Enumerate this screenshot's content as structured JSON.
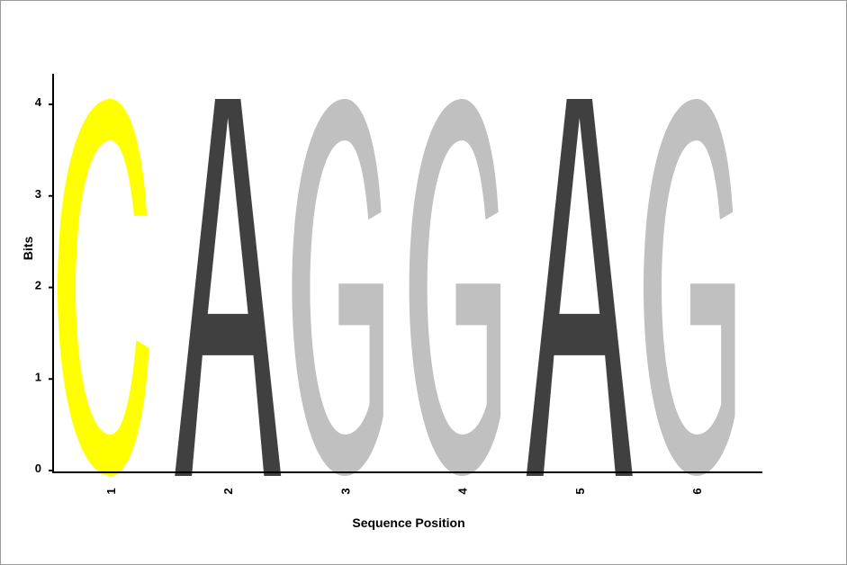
{
  "chart_data": {
    "type": "sequence-logo",
    "xlabel": "Sequence Position",
    "ylabel": "Bits",
    "ylim": [
      0,
      4
    ],
    "yticks": [
      "0",
      "1",
      "2",
      "3",
      "4"
    ],
    "categories": [
      "1",
      "2",
      "3",
      "4",
      "5",
      "6"
    ],
    "letters": [
      {
        "position": "1",
        "letter": "C",
        "bits": 4.0,
        "color": "#ffff00"
      },
      {
        "position": "2",
        "letter": "A",
        "bits": 4.0,
        "color": "#404040"
      },
      {
        "position": "3",
        "letter": "G",
        "bits": 4.0,
        "color": "#c0c0c0"
      },
      {
        "position": "4",
        "letter": "G",
        "bits": 4.0,
        "color": "#c0c0c0"
      },
      {
        "position": "5",
        "letter": "A",
        "bits": 4.0,
        "color": "#404040"
      },
      {
        "position": "6",
        "letter": "G",
        "bits": 4.0,
        "color": "#c0c0c0"
      }
    ],
    "grid": false,
    "legend": "none"
  }
}
